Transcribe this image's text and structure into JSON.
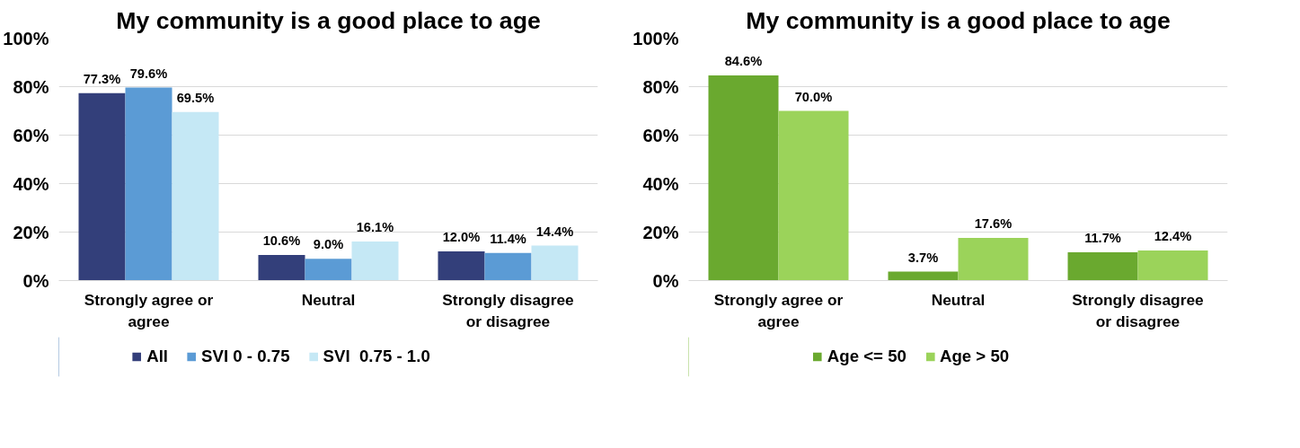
{
  "chart_data": [
    {
      "type": "bar",
      "title": "My community is a good place to age",
      "categories": [
        "Strongly agree or agree",
        "Neutral",
        "Strongly disagree or disagree"
      ],
      "series": [
        {
          "name": "All",
          "color": "#333f7a",
          "values": [
            77.3,
            10.6,
            12.0
          ],
          "value_labels": [
            "77.3%",
            "10.6%",
            "12.0%"
          ]
        },
        {
          "name": "SVI 0 - 0.75",
          "color": "#5b9bd5",
          "values": [
            79.6,
            9.0,
            11.4
          ],
          "value_labels": [
            "79.6%",
            "9.0%",
            "11.4%"
          ]
        },
        {
          "name": "SVI  0.75 - 1.0",
          "color": "#c5e8f5",
          "values": [
            69.5,
            16.1,
            14.4
          ],
          "value_labels": [
            "69.5%",
            "16.1%",
            "14.4%"
          ]
        }
      ],
      "ylim": [
        0,
        100
      ],
      "yticks": [
        {
          "value": 0,
          "label": "0%"
        },
        {
          "value": 20,
          "label": "20%"
        },
        {
          "value": 40,
          "label": "40%"
        },
        {
          "value": 60,
          "label": "60%"
        },
        {
          "value": 80,
          "label": "80%"
        },
        {
          "value": 100,
          "label": "100%"
        }
      ],
      "grid": "y",
      "legend": "bottom",
      "data_labels": true
    },
    {
      "type": "bar",
      "title": "My community is a good place to age",
      "categories": [
        "Strongly agree or agree",
        "Neutral",
        "Strongly disagree or disagree"
      ],
      "series": [
        {
          "name": "Age <= 50",
          "color": "#6aa92f",
          "values": [
            84.6,
            3.7,
            11.7
          ],
          "value_labels": [
            "84.6%",
            "3.7%",
            "11.7%"
          ]
        },
        {
          "name": "Age > 50",
          "color": "#9bd35a",
          "values": [
            70.0,
            17.6,
            12.4
          ],
          "value_labels": [
            "70.0%",
            "17.6%",
            "12.4%"
          ]
        }
      ],
      "ylim": [
        0,
        100
      ],
      "yticks": [
        {
          "value": 0,
          "label": "0%"
        },
        {
          "value": 20,
          "label": "20%"
        },
        {
          "value": 40,
          "label": "40%"
        },
        {
          "value": 60,
          "label": "60%"
        },
        {
          "value": 80,
          "label": "80%"
        },
        {
          "value": 100,
          "label": "100%"
        }
      ],
      "grid": "y",
      "legend": "bottom",
      "data_labels": true
    }
  ]
}
